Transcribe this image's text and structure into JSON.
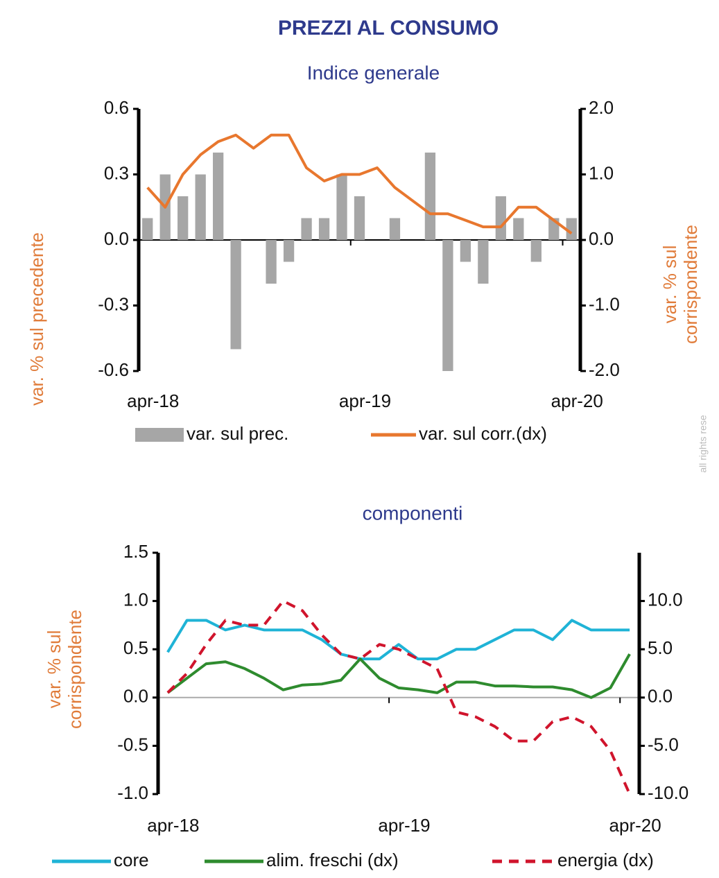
{
  "title": "PREZZI AL CONSUMO",
  "watermark": "all rights rese",
  "chart_data": [
    {
      "type": "combo",
      "subtitle": "Indice  generale",
      "ylabel": [
        "var. % sul precedente"
      ],
      "y2label": [
        "var. % sul",
        "corrispondente"
      ],
      "categories": [
        "apr-18",
        null,
        null,
        null,
        null,
        null,
        null,
        null,
        null,
        null,
        null,
        null,
        "apr-19",
        null,
        null,
        null,
        null,
        null,
        null,
        null,
        null,
        null,
        null,
        null,
        "apr-20"
      ],
      "ylim": [
        -0.6,
        0.6
      ],
      "yticks": [
        -0.6,
        -0.3,
        {
          "value": 0,
          "label": "0.0"
        },
        0.3,
        0.6
      ],
      "y2lim": [
        -2,
        2
      ],
      "y2ticks": [
        {
          "value": -2,
          "label": "-2.0"
        },
        {
          "value": -1,
          "label": "-1.0"
        },
        {
          "value": 0,
          "label": "0.0"
        },
        {
          "value": 1,
          "label": "1.0"
        },
        {
          "value": 2,
          "label": "2.0"
        }
      ],
      "series": [
        {
          "name": "var. sul prec.",
          "type": "bar",
          "color": "#a6a6a6",
          "values": [
            0.1,
            0.3,
            0.2,
            0.3,
            0.4,
            -0.5,
            0,
            -0.2,
            -0.1,
            0.1,
            0.1,
            0.3,
            0.2,
            0,
            0.1,
            0,
            0.4,
            -0.6,
            -0.1,
            -0.2,
            0.2,
            0.1,
            -0.1,
            0.1,
            0.1
          ]
        },
        {
          "name": "var. sul corr.(dx)",
          "type": "line",
          "axis": "y2",
          "color": "#e8772e",
          "values": [
            0.8,
            0.5,
            1.0,
            1.3,
            1.5,
            1.6,
            1.4,
            1.6,
            1.6,
            1.1,
            0.9,
            1.0,
            1.0,
            1.1,
            0.8,
            0.6,
            0.4,
            0.4,
            0.3,
            0.2,
            0.2,
            0.5,
            0.5,
            0.3,
            0.1
          ]
        }
      ]
    },
    {
      "type": "line",
      "subtitle": "componenti",
      "ylabel": [
        "var. % sul",
        "corrispondente"
      ],
      "categories": [
        "apr-18",
        null,
        null,
        null,
        null,
        null,
        null,
        null,
        null,
        null,
        null,
        null,
        "apr-19",
        null,
        null,
        null,
        null,
        null,
        null,
        null,
        null,
        null,
        null,
        null,
        "apr-20"
      ],
      "ylim": [
        -1,
        1.5
      ],
      "yticks": [
        {
          "value": -1,
          "label": "-1.0"
        },
        -0.5,
        {
          "value": 0,
          "label": "0.0"
        },
        0.5,
        {
          "value": 1,
          "label": "1.0"
        },
        1.5
      ],
      "y2lim": [
        -10,
        15
      ],
      "y2ticks": [
        {
          "value": -10,
          "label": "-10.0"
        },
        {
          "value": -5,
          "label": "-5.0"
        },
        {
          "value": 0,
          "label": "0.0"
        },
        {
          "value": 5,
          "label": "5.0"
        },
        {
          "value": 10,
          "label": "10.0"
        }
      ],
      "series": [
        {
          "name": "core",
          "type": "line",
          "color": "#1fb3d6",
          "values": [
            0.47,
            0.8,
            0.8,
            0.7,
            0.75,
            0.7,
            0.7,
            0.7,
            0.6,
            0.45,
            0.4,
            0.4,
            0.55,
            0.4,
            0.4,
            0.5,
            0.5,
            0.6,
            0.7,
            0.7,
            0.6,
            0.8,
            0.7,
            0.7,
            0.7
          ]
        },
        {
          "name": "alim. freschi (dx)",
          "type": "line",
          "axis": "y2",
          "color": "#2e8b2e",
          "values": [
            0.5,
            2.0,
            3.5,
            3.7,
            3.0,
            2.0,
            0.8,
            1.3,
            1.4,
            1.8,
            4.0,
            2.0,
            1.0,
            0.8,
            0.5,
            1.6,
            1.6,
            1.2,
            1.2,
            1.1,
            1.1,
            0.8,
            0.0,
            1.0,
            4.5
          ]
        },
        {
          "name": "energia (dx)",
          "type": "line",
          "axis": "y2",
          "color": "#d0142c",
          "dash": true,
          "values": [
            0.5,
            2.5,
            5.5,
            8.0,
            7.5,
            7.5,
            10.0,
            9.0,
            6.5,
            4.5,
            4.0,
            5.5,
            5.0,
            4.0,
            3.0,
            -1.5,
            -2.0,
            -3.0,
            -4.5,
            -4.5,
            -2.5,
            -2.0,
            -3.0,
            -5.5,
            -10.0
          ]
        }
      ]
    }
  ]
}
